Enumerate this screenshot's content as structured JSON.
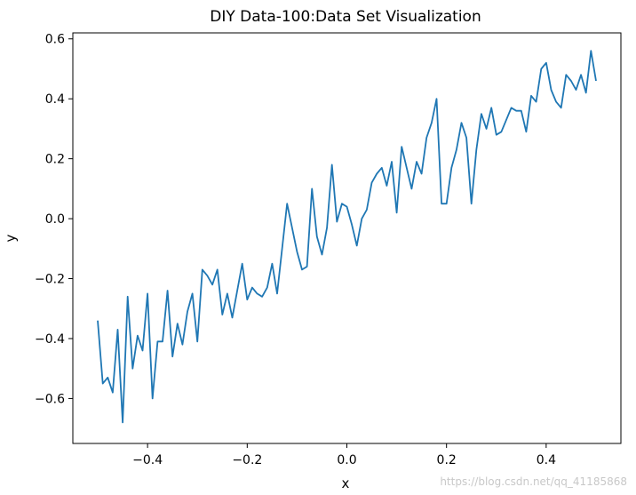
{
  "chart_data": {
    "type": "line",
    "title": "DIY Data-100:Data Set Visualization",
    "xlabel": "x",
    "ylabel": "y",
    "xlim": [
      -0.55,
      0.55
    ],
    "ylim": [
      -0.75,
      0.62
    ],
    "xticks": [
      -0.4,
      -0.2,
      0.0,
      0.2,
      0.4
    ],
    "xtick_labels": [
      "−0.4",
      "−0.2",
      "0.0",
      "0.2",
      "0.4"
    ],
    "yticks": [
      -0.6,
      -0.4,
      -0.2,
      0.0,
      0.2,
      0.4,
      0.6
    ],
    "ytick_labels": [
      "−0.6",
      "−0.4",
      "−0.2",
      "0.0",
      "0.2",
      "0.4",
      "0.6"
    ],
    "grid": false,
    "series": [
      {
        "color": "#1f77b4",
        "x": [
          -0.5,
          -0.49,
          -0.48,
          -0.47,
          -0.46,
          -0.45,
          -0.44,
          -0.43,
          -0.42,
          -0.41,
          -0.4,
          -0.39,
          -0.38,
          -0.37,
          -0.36,
          -0.35,
          -0.34,
          -0.33,
          -0.32,
          -0.31,
          -0.3,
          -0.29,
          -0.28,
          -0.27,
          -0.26,
          -0.25,
          -0.24,
          -0.23,
          -0.22,
          -0.21,
          -0.2,
          -0.19,
          -0.18,
          -0.17,
          -0.16,
          -0.15,
          -0.14,
          -0.13,
          -0.12,
          -0.11,
          -0.1,
          -0.09,
          -0.08,
          -0.07,
          -0.06,
          -0.05,
          -0.04,
          -0.03,
          -0.02,
          -0.01,
          0.0,
          0.01,
          0.02,
          0.03,
          0.04,
          0.05,
          0.06,
          0.07,
          0.08,
          0.09,
          0.1,
          0.11,
          0.12,
          0.13,
          0.14,
          0.15,
          0.16,
          0.17,
          0.18,
          0.19,
          0.2,
          0.21,
          0.22,
          0.23,
          0.24,
          0.25,
          0.26,
          0.27,
          0.28,
          0.29,
          0.3,
          0.31,
          0.32,
          0.33,
          0.34,
          0.35,
          0.36,
          0.37,
          0.38,
          0.39,
          0.4,
          0.41,
          0.42,
          0.43,
          0.44,
          0.45,
          0.46,
          0.47,
          0.48,
          0.49,
          0.5
        ],
        "y": [
          -0.34,
          -0.55,
          -0.53,
          -0.58,
          -0.37,
          -0.68,
          -0.26,
          -0.5,
          -0.39,
          -0.44,
          -0.25,
          -0.6,
          -0.41,
          -0.41,
          -0.24,
          -0.46,
          -0.35,
          -0.42,
          -0.31,
          -0.25,
          -0.41,
          -0.17,
          -0.19,
          -0.22,
          -0.17,
          -0.32,
          -0.25,
          -0.33,
          -0.24,
          -0.15,
          -0.27,
          -0.23,
          -0.25,
          -0.26,
          -0.23,
          -0.15,
          -0.25,
          -0.1,
          0.05,
          -0.03,
          -0.11,
          -0.17,
          -0.16,
          0.1,
          -0.06,
          -0.12,
          -0.03,
          0.18,
          -0.01,
          0.05,
          0.04,
          -0.02,
          -0.09,
          0.0,
          0.03,
          0.12,
          0.15,
          0.17,
          0.11,
          0.19,
          0.02,
          0.24,
          0.17,
          0.1,
          0.19,
          0.15,
          0.27,
          0.32,
          0.4,
          0.05,
          0.05,
          0.17,
          0.23,
          0.32,
          0.27,
          0.05,
          0.23,
          0.35,
          0.3,
          0.37,
          0.28,
          0.29,
          0.33,
          0.37,
          0.36,
          0.36,
          0.29,
          0.41,
          0.39,
          0.5,
          0.52,
          0.43,
          0.39,
          0.37,
          0.48,
          0.46,
          0.43,
          0.48,
          0.42,
          0.56,
          0.46
        ]
      }
    ]
  },
  "watermark": "https://blog.csdn.net/qq_41185868"
}
